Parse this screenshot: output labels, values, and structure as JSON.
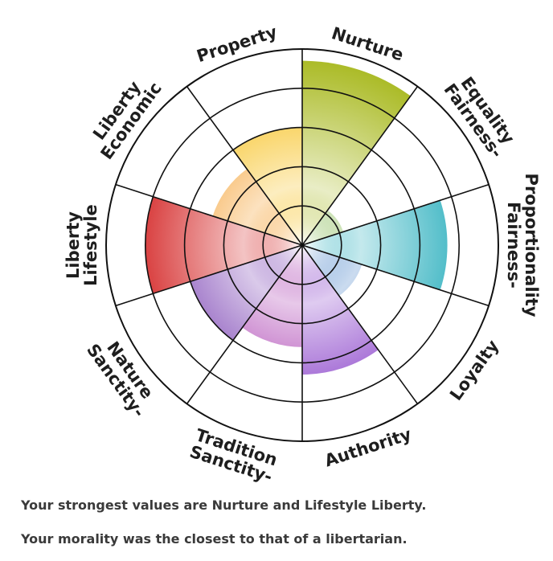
{
  "chart_data": {
    "type": "radial-wedge",
    "rings": 5,
    "max_value": 5,
    "categories": [
      {
        "name": "Nurture",
        "lines": [
          "Nurture"
        ],
        "value": 4.7,
        "color": "#a6b71a"
      },
      {
        "name": "Fairness-Equality",
        "lines": [
          "Fairness-",
          "Equality"
        ],
        "value": 1.1,
        "color": "#6aaa2c"
      },
      {
        "name": "Fairness-Proportionality",
        "lines": [
          "Fairness-",
          "Proportionality"
        ],
        "value": 3.7,
        "color": "#13a6b6"
      },
      {
        "name": "Loyalty",
        "lines": [
          "Loyalty"
        ],
        "value": 1.6,
        "color": "#2c6fc0"
      },
      {
        "name": "Authority",
        "lines": [
          "Authority"
        ],
        "value": 3.3,
        "color": "#7e2fc4"
      },
      {
        "name": "Sanctity-Tradition",
        "lines": [
          "Sanctity-",
          "Tradition"
        ],
        "value": 2.6,
        "color": "#a026a8"
      },
      {
        "name": "Sanctity-Nature",
        "lines": [
          "Sanctity-",
          "Nature"
        ],
        "value": 3.0,
        "color": "#6a2aaa"
      },
      {
        "name": "Lifestyle Liberty",
        "lines": [
          "Lifestyle",
          "Liberty"
        ],
        "value": 4.0,
        "color": "#d01212"
      },
      {
        "name": "Economic Liberty",
        "lines": [
          "Economic",
          "Liberty"
        ],
        "value": 2.4,
        "color": "#f28a00"
      },
      {
        "name": "Property",
        "lines": [
          "Property"
        ],
        "value": 3.0,
        "color": "#f5b800"
      }
    ]
  },
  "results": {
    "strongest": "Your strongest values are Nurture and Lifestyle Liberty.",
    "closest": "Your morality was the closest to that of a libertarian."
  }
}
